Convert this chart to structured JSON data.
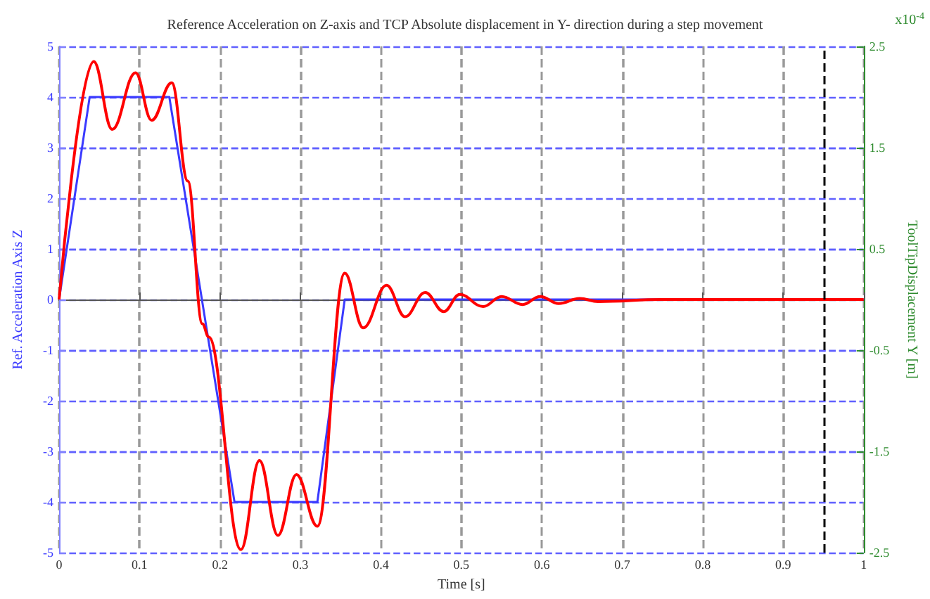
{
  "chart_data": {
    "type": "line",
    "title": "Reference Acceleration on Z-axis and TCP Absolute displacement in Y- direction during a step movement",
    "xlabel": "Time [s]",
    "ylabel": "Ref. Acceleration Axis Z",
    "y2label": "ToolTipDisplacement Y [m]",
    "annotations": [
      "x10$^{-4}$"
    ],
    "series": [
      {
        "color": "#3a3aff",
        "x": [
          0,
          0.038,
          0.137,
          0.218,
          0.321,
          0.355,
          1
        ],
        "values": [
          0,
          4,
          4,
          -4,
          -4,
          0,
          0
        ]
      },
      {
        "color": "#ff0000",
        "axis": "y2",
        "x": [
          0,
          0.043,
          0.066,
          0.095,
          0.115,
          0.14,
          0.16,
          0.178,
          0.186,
          0.226,
          0.249,
          0.272,
          0.295,
          0.321,
          0.355,
          0.378,
          0.407,
          0.43,
          0.455,
          0.478,
          0.498,
          0.527,
          0.55,
          0.576,
          0.598,
          0.621,
          0.647,
          0.67,
          0.75,
          1
        ],
        "values": [
          0,
          2.35,
          1.68,
          2.24,
          1.77,
          2.14,
          1.17,
          -0.24,
          -0.37,
          -2.47,
          -1.59,
          -2.33,
          -1.73,
          -2.24,
          0.26,
          -0.28,
          0.14,
          -0.17,
          0.07,
          -0.12,
          0.05,
          -0.07,
          0.03,
          -0.05,
          0.03,
          -0.04,
          0.01,
          -0.02,
          0,
          0
        ]
      }
    ],
    "xlim": [
      0,
      1
    ],
    "xticks": [
      0,
      0.1,
      0.2,
      0.3,
      0.4,
      0.5,
      0.6,
      0.7,
      0.8,
      0.9,
      1
    ],
    "ylim": [
      -5,
      5
    ],
    "yticks": [
      -5,
      -4,
      -3,
      -2,
      -1,
      0,
      1,
      2,
      3,
      4,
      5
    ],
    "y2lim": [
      -2.5,
      2.5
    ],
    "y2ticks": [
      -2.5,
      -1.5,
      -0.5,
      0.5,
      1.5,
      2.5
    ],
    "ref_lines": [
      {
        "axis": "x",
        "value": 0.95,
        "color": "#000000",
        "line_style": "dashed"
      }
    ],
    "grid": true,
    "marker": "none",
    "line_style": "solid"
  }
}
